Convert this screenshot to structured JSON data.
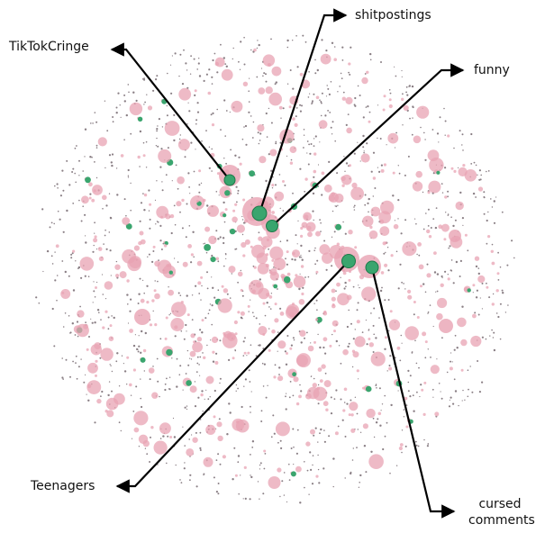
{
  "nodes": [
    {
      "label": "TikTokCringe"
    },
    {
      "label": "shitpostings"
    },
    {
      "label": "funny"
    },
    {
      "label": "Teenagers"
    },
    {
      "label": "cursed comments"
    }
  ]
}
